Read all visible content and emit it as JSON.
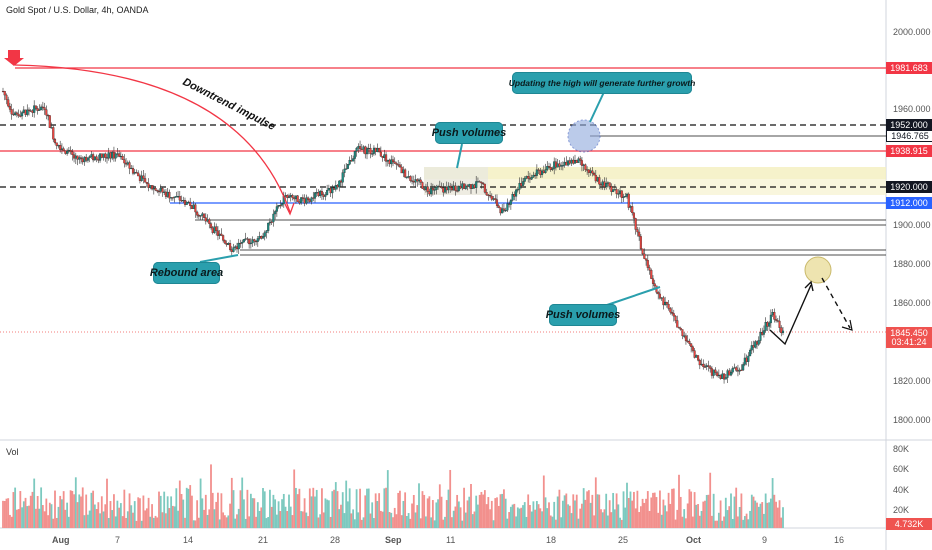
{
  "header": {
    "title": "Gold Spot / U.S. Dollar, 4h, OANDA"
  },
  "volume_panel": {
    "title": "Vol",
    "current_value": "4.732K"
  },
  "annotations": {
    "downtrend": "Downtrend impulse",
    "updating_high": "Updating the high will generate further growth",
    "push_volumes_top": "Push volumes",
    "push_volumes_bottom": "Push volumes",
    "rebound_area": "Rebound area"
  },
  "price_labels": {
    "p1981": "1981.683",
    "p1952": "1952.000",
    "p1946": "1946.765",
    "p1938": "1938.915",
    "p1920": "1920.000",
    "p1912": "1912.000",
    "p1845": "1845.450",
    "countdown": "03:41:24"
  },
  "price_axis": [
    "2000.000",
    "1960.000",
    "1900.000",
    "1880.000",
    "1860.000",
    "1820.000",
    "1800.000"
  ],
  "volume_axis": [
    "80K",
    "60K",
    "40K",
    "20K"
  ],
  "time_axis": [
    "Aug",
    "7",
    "14",
    "21",
    "28",
    "Sep",
    "11",
    "18",
    "25",
    "Oct",
    "9",
    "16"
  ],
  "colors": {
    "up": "#26a69a",
    "down": "#ef5350",
    "red_line": "#f23645",
    "blue_line": "#2962ff",
    "annotation_bg": "#2a9fad"
  },
  "chart_data": {
    "type": "candlestick",
    "symbol": "Gold Spot / U.S. Dollar",
    "interval": "4h",
    "y_range": [
      1790,
      2010
    ],
    "close_path": [
      {
        "date": "Jul 27",
        "price": 1970
      },
      {
        "date": "Jul 28",
        "price": 1958
      },
      {
        "date": "Jul 31",
        "price": 1962
      },
      {
        "date": "Aug 1",
        "price": 1944
      },
      {
        "date": "Aug 3",
        "price": 1935
      },
      {
        "date": "Aug 7",
        "price": 1937
      },
      {
        "date": "Aug 10",
        "price": 1921
      },
      {
        "date": "Aug 14",
        "price": 1912
      },
      {
        "date": "Aug 16",
        "price": 1900
      },
      {
        "date": "Aug 18",
        "price": 1889
      },
      {
        "date": "Aug 21",
        "price": 1896
      },
      {
        "date": "Aug 23",
        "price": 1915
      },
      {
        "date": "Aug 25",
        "price": 1914
      },
      {
        "date": "Aug 28",
        "price": 1920
      },
      {
        "date": "Aug 30",
        "price": 1940
      },
      {
        "date": "Sep 1",
        "price": 1939
      },
      {
        "date": "Sep 4",
        "price": 1926
      },
      {
        "date": "Sep 6",
        "price": 1919
      },
      {
        "date": "Sep 11",
        "price": 1922
      },
      {
        "date": "Sep 13",
        "price": 1908
      },
      {
        "date": "Sep 15",
        "price": 1924
      },
      {
        "date": "Sep 18",
        "price": 1932
      },
      {
        "date": "Sep 20",
        "price": 1935
      },
      {
        "date": "Sep 22",
        "price": 1925
      },
      {
        "date": "Sep 25",
        "price": 1915
      },
      {
        "date": "Sep 27",
        "price": 1878
      },
      {
        "date": "Sep 28",
        "price": 1866
      },
      {
        "date": "Oct 2",
        "price": 1830
      },
      {
        "date": "Oct 4",
        "price": 1822
      },
      {
        "date": "Oct 6",
        "price": 1828
      },
      {
        "date": "Oct 9",
        "price": 1855
      },
      {
        "date": "Oct 10",
        "price": 1845.45
      }
    ],
    "levels": [
      1981.683,
      1952.0,
      1946.765,
      1938.915,
      1920.0,
      1912.0,
      1845.45
    ],
    "volume_range": [
      0,
      90000
    ]
  }
}
